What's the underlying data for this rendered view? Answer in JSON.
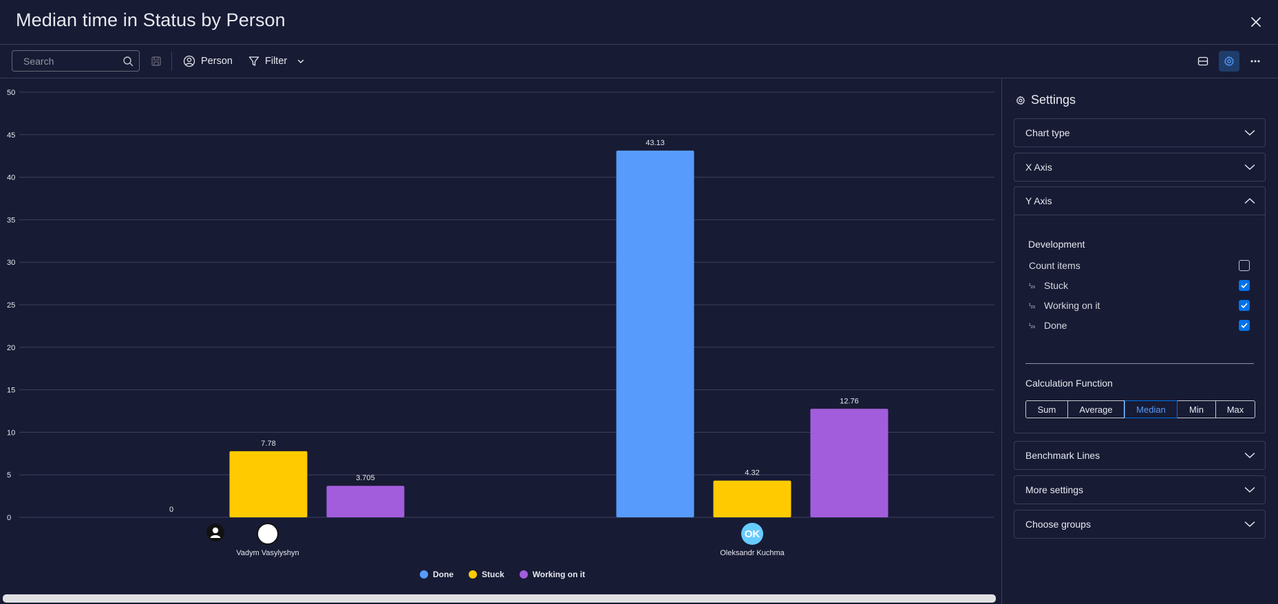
{
  "window": {
    "title": "Median time in Status by Person"
  },
  "toolbar": {
    "search_placeholder": "Search",
    "person_label": "Person",
    "filter_label": "Filter"
  },
  "chart_data": {
    "type": "bar",
    "categories": [
      "Vadym Vasylyshyn",
      "Oleksandr Kuchma"
    ],
    "series": [
      {
        "name": "Done",
        "color": "#579bfc",
        "values": [
          0,
          43.13
        ],
        "labels": [
          "0",
          "43.13"
        ]
      },
      {
        "name": "Stuck",
        "color": "#ffcb00",
        "values": [
          7.78,
          4.32
        ],
        "labels": [
          "7.78",
          "4.32"
        ]
      },
      {
        "name": "Working on it",
        "color": "#a25ddc",
        "values": [
          3.705,
          12.76
        ],
        "labels": [
          "3.705",
          "12.76"
        ]
      }
    ],
    "ylim": [
      0,
      50
    ],
    "yticks": [
      0,
      5,
      10,
      15,
      20,
      25,
      30,
      35,
      40,
      45,
      50
    ],
    "grid": true,
    "legend": "bottom",
    "title": "",
    "xlabel": "",
    "ylabel": ""
  },
  "people": [
    {
      "name": "Vadym Vasylyshyn",
      "avatar": "person-silhouette-icon"
    },
    {
      "name": "Oleksandr Kuchma",
      "avatar_initials": "OK"
    }
  ],
  "legend": [
    {
      "label": "Done",
      "color": "#579bfc"
    },
    {
      "label": "Stuck",
      "color": "#ffcb00"
    },
    {
      "label": "Working on it",
      "color": "#a25ddc"
    }
  ],
  "settings": {
    "title": "Settings",
    "sections": {
      "chart_type": "Chart type",
      "x_axis": "X Axis",
      "y_axis": "Y Axis",
      "benchmark": "Benchmark Lines",
      "more": "More settings",
      "groups": "Choose groups"
    },
    "y_axis": {
      "group": "Development",
      "count_items": "Count items",
      "num_icon": "¹₂₃",
      "columns": [
        {
          "label": "Stuck",
          "checked": true
        },
        {
          "label": "Working on it",
          "checked": true
        },
        {
          "label": "Done",
          "checked": true
        }
      ],
      "calc_label": "Calculation Function",
      "functions": [
        "Sum",
        "Average",
        "Median",
        "Min",
        "Max"
      ],
      "selected_function": "Median"
    }
  }
}
